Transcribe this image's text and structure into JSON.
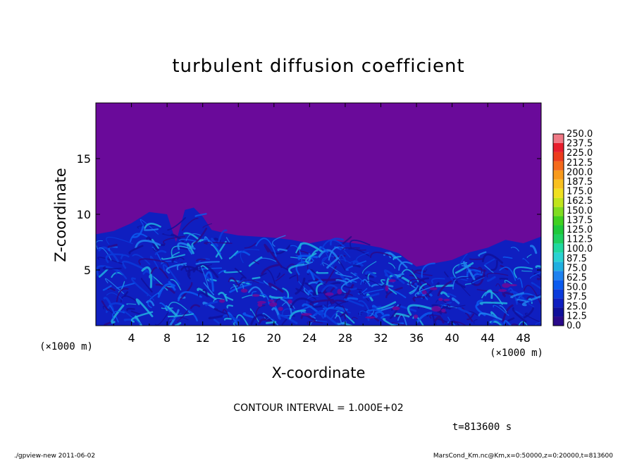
{
  "chart_data": {
    "type": "heatmap",
    "title": "turbulent diffusion coefficient",
    "xlabel": "X-coordinate",
    "ylabel": "Z-coordinate",
    "x_unit": "(×1000 m)",
    "x_unit_right": "(×1000 m)",
    "xlim": [
      0,
      50
    ],
    "ylim": [
      0,
      20
    ],
    "xticks": [
      4,
      8,
      12,
      16,
      20,
      24,
      28,
      32,
      36,
      40,
      44,
      48
    ],
    "yticks": [
      5,
      10,
      15
    ],
    "colorbar_levels": [
      "0.0",
      "12.5",
      "25.0",
      "37.5",
      "50.0",
      "62.5",
      "75.0",
      "87.5",
      "100.0",
      "112.5",
      "125.0",
      "137.5",
      "150.0",
      "162.5",
      "175.0",
      "187.5",
      "200.0",
      "212.5",
      "225.0",
      "237.5",
      "250.0"
    ],
    "colorbar_colors": [
      "#2a0a8a",
      "#10109a",
      "#0f1fc0",
      "#0b3bdb",
      "#0b5bef",
      "#1e82f0",
      "#20b0e0",
      "#2ad2d2",
      "#20d8a0",
      "#1ecf60",
      "#1ec83a",
      "#40d020",
      "#80dc20",
      "#c0e41c",
      "#f0e020",
      "#f8c020",
      "#f89a1c",
      "#f46a1c",
      "#ec3c1c",
      "#e81e2c",
      "#f07a86"
    ],
    "background_color": "#6a0a9a",
    "boundary_layer_top_x": [
      0,
      2,
      4,
      6,
      8,
      9,
      10,
      11,
      12,
      13,
      14,
      16,
      18,
      20,
      22,
      24,
      26,
      28,
      30,
      32,
      34,
      36,
      38,
      40,
      42,
      44,
      46,
      48,
      50
    ],
    "boundary_layer_top_z": [
      8.2,
      8.5,
      9.2,
      10.2,
      10.0,
      7.5,
      10.4,
      10.6,
      9.8,
      8.6,
      8.4,
      8.1,
      8.0,
      7.9,
      7.7,
      7.4,
      7.7,
      7.5,
      7.3,
      7.0,
      6.5,
      5.3,
      5.6,
      5.9,
      6.6,
      7.0,
      7.7,
      7.4,
      8.0
    ],
    "contour_interval": "CONTOUR INTERVAL = 1.000E+02",
    "time_label": "t=813600 s"
  },
  "footer": {
    "left": "./gpview-new   2011-06-02",
    "right": "MarsCond_Km.nc@Km,x=0:50000,z=0:20000,t=813600"
  }
}
